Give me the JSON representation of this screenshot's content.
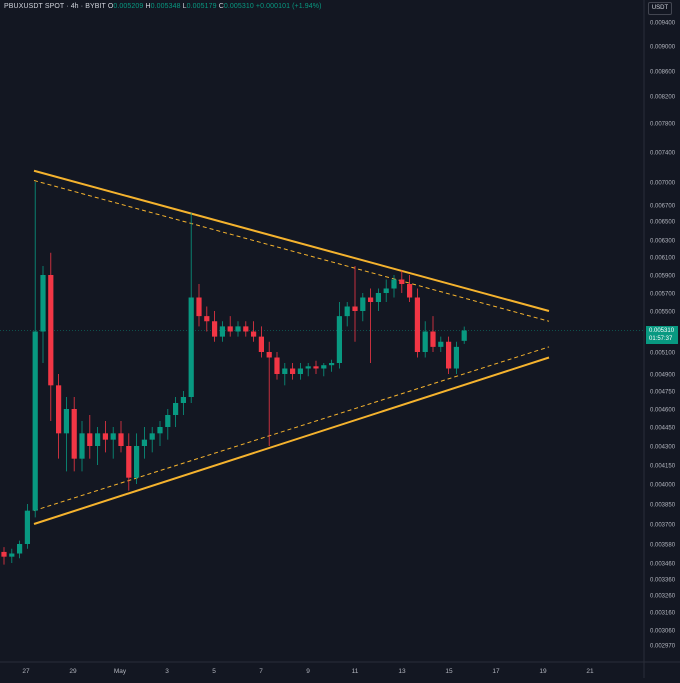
{
  "legend": {
    "symbol": "PBUXUSDT SPOT · 4h · BYBIT",
    "o_label": "O",
    "o_value": "0.005209",
    "h_label": "H",
    "h_value": "0.005348",
    "l_label": "L",
    "l_value": "0.005179",
    "c_label": "C",
    "c_value": "0.005310",
    "change": "+0.000101 (+1.94%)"
  },
  "currency": "USDT",
  "last_price": {
    "value": "0.005310",
    "countdown": "01:57:37"
  },
  "colors": {
    "background": "#131722",
    "up": "#089981",
    "down": "#f23645",
    "trendline": "#f5b32e",
    "axis_text": "#b2b5be"
  },
  "chart_data": {
    "type": "candlestick",
    "x_labels": [
      "27",
      "29",
      "May",
      "3",
      "5",
      "7",
      "9",
      "11",
      "13",
      "15",
      "17",
      "19",
      "21"
    ],
    "y_ticks": [
      "0.009400",
      "0.009000",
      "0.008600",
      "0.008200",
      "0.007800",
      "0.007400",
      "0.007000",
      "0.006700",
      "0.006500",
      "0.006300",
      "0.006100",
      "0.005900",
      "0.005700",
      "0.005500",
      "0.005100",
      "0.004900",
      "0.004750",
      "0.004600",
      "0.004450",
      "0.004300",
      "0.004150",
      "0.004000",
      "0.003850",
      "0.003700",
      "0.003580",
      "0.003460",
      "0.003360",
      "0.003260",
      "0.003160",
      "0.003060",
      "0.002970",
      "0.002885"
    ],
    "candles": [
      {
        "o": 0.00353,
        "h": 0.00356,
        "l": 0.00345,
        "c": 0.0035
      },
      {
        "o": 0.0035,
        "h": 0.00355,
        "l": 0.00346,
        "c": 0.00352
      },
      {
        "o": 0.00352,
        "h": 0.0036,
        "l": 0.00349,
        "c": 0.00358
      },
      {
        "o": 0.00358,
        "h": 0.00385,
        "l": 0.00355,
        "c": 0.0038
      },
      {
        "o": 0.0038,
        "h": 0.007,
        "l": 0.00375,
        "c": 0.0053
      },
      {
        "o": 0.0053,
        "h": 0.006,
        "l": 0.005,
        "c": 0.0059
      },
      {
        "o": 0.0059,
        "h": 0.00615,
        "l": 0.0045,
        "c": 0.0048
      },
      {
        "o": 0.0048,
        "h": 0.0049,
        "l": 0.0042,
        "c": 0.0044
      },
      {
        "o": 0.0044,
        "h": 0.0047,
        "l": 0.0041,
        "c": 0.0046
      },
      {
        "o": 0.0046,
        "h": 0.0047,
        "l": 0.0041,
        "c": 0.0042
      },
      {
        "o": 0.0042,
        "h": 0.0045,
        "l": 0.0041,
        "c": 0.0044
      },
      {
        "o": 0.0044,
        "h": 0.00455,
        "l": 0.0042,
        "c": 0.0043
      },
      {
        "o": 0.0043,
        "h": 0.00445,
        "l": 0.00415,
        "c": 0.0044
      },
      {
        "o": 0.0044,
        "h": 0.0045,
        "l": 0.00425,
        "c": 0.00435
      },
      {
        "o": 0.00435,
        "h": 0.00445,
        "l": 0.0042,
        "c": 0.0044
      },
      {
        "o": 0.0044,
        "h": 0.0045,
        "l": 0.00425,
        "c": 0.0043
      },
      {
        "o": 0.0043,
        "h": 0.0044,
        "l": 0.00395,
        "c": 0.00405
      },
      {
        "o": 0.00405,
        "h": 0.0044,
        "l": 0.004,
        "c": 0.0043
      },
      {
        "o": 0.0043,
        "h": 0.00445,
        "l": 0.0042,
        "c": 0.00435
      },
      {
        "o": 0.00435,
        "h": 0.00445,
        "l": 0.00425,
        "c": 0.0044
      },
      {
        "o": 0.0044,
        "h": 0.0045,
        "l": 0.0043,
        "c": 0.00445
      },
      {
        "o": 0.00445,
        "h": 0.0046,
        "l": 0.00435,
        "c": 0.00455
      },
      {
        "o": 0.00455,
        "h": 0.0047,
        "l": 0.00445,
        "c": 0.00465
      },
      {
        "o": 0.00465,
        "h": 0.00475,
        "l": 0.00455,
        "c": 0.0047
      },
      {
        "o": 0.0047,
        "h": 0.0066,
        "l": 0.00465,
        "c": 0.00565
      },
      {
        "o": 0.00565,
        "h": 0.0058,
        "l": 0.00535,
        "c": 0.00545
      },
      {
        "o": 0.00545,
        "h": 0.00555,
        "l": 0.0053,
        "c": 0.0054
      },
      {
        "o": 0.0054,
        "h": 0.0055,
        "l": 0.0052,
        "c": 0.00525
      },
      {
        "o": 0.00525,
        "h": 0.0054,
        "l": 0.0052,
        "c": 0.00535
      },
      {
        "o": 0.00535,
        "h": 0.00545,
        "l": 0.00525,
        "c": 0.0053
      },
      {
        "o": 0.0053,
        "h": 0.0054,
        "l": 0.00525,
        "c": 0.00535
      },
      {
        "o": 0.00535,
        "h": 0.0054,
        "l": 0.00525,
        "c": 0.0053
      },
      {
        "o": 0.0053,
        "h": 0.0054,
        "l": 0.0052,
        "c": 0.00525
      },
      {
        "o": 0.00525,
        "h": 0.00535,
        "l": 0.00505,
        "c": 0.0051
      },
      {
        "o": 0.0051,
        "h": 0.0052,
        "l": 0.0043,
        "c": 0.00505
      },
      {
        "o": 0.00505,
        "h": 0.0051,
        "l": 0.00485,
        "c": 0.0049
      },
      {
        "o": 0.0049,
        "h": 0.005,
        "l": 0.0048,
        "c": 0.00495
      },
      {
        "o": 0.00495,
        "h": 0.005,
        "l": 0.00485,
        "c": 0.0049
      },
      {
        "o": 0.0049,
        "h": 0.005,
        "l": 0.00485,
        "c": 0.00495
      },
      {
        "o": 0.00495,
        "h": 0.005,
        "l": 0.00488,
        "c": 0.00497
      },
      {
        "o": 0.00497,
        "h": 0.00502,
        "l": 0.0049,
        "c": 0.00495
      },
      {
        "o": 0.00495,
        "h": 0.005,
        "l": 0.00488,
        "c": 0.00498
      },
      {
        "o": 0.00498,
        "h": 0.00503,
        "l": 0.00492,
        "c": 0.005
      },
      {
        "o": 0.005,
        "h": 0.0056,
        "l": 0.00495,
        "c": 0.00545
      },
      {
        "o": 0.00545,
        "h": 0.0056,
        "l": 0.00535,
        "c": 0.00555
      },
      {
        "o": 0.00555,
        "h": 0.006,
        "l": 0.0052,
        "c": 0.0055
      },
      {
        "o": 0.0055,
        "h": 0.0057,
        "l": 0.0054,
        "c": 0.00565
      },
      {
        "o": 0.00565,
        "h": 0.00575,
        "l": 0.005,
        "c": 0.0056
      },
      {
        "o": 0.0056,
        "h": 0.00575,
        "l": 0.0055,
        "c": 0.0057
      },
      {
        "o": 0.0057,
        "h": 0.00585,
        "l": 0.0056,
        "c": 0.00575
      },
      {
        "o": 0.00575,
        "h": 0.0059,
        "l": 0.00565,
        "c": 0.00585
      },
      {
        "o": 0.00585,
        "h": 0.00595,
        "l": 0.0057,
        "c": 0.0058
      },
      {
        "o": 0.0058,
        "h": 0.0059,
        "l": 0.0056,
        "c": 0.00565
      },
      {
        "o": 0.00565,
        "h": 0.00575,
        "l": 0.00505,
        "c": 0.0051
      },
      {
        "o": 0.0051,
        "h": 0.0054,
        "l": 0.00505,
        "c": 0.0053
      },
      {
        "o": 0.0053,
        "h": 0.00545,
        "l": 0.0051,
        "c": 0.00515
      },
      {
        "o": 0.00515,
        "h": 0.00525,
        "l": 0.0051,
        "c": 0.0052
      },
      {
        "o": 0.0052,
        "h": 0.00525,
        "l": 0.0049,
        "c": 0.00495
      },
      {
        "o": 0.00495,
        "h": 0.0052,
        "l": 0.0049,
        "c": 0.00515
      },
      {
        "o": 0.005209,
        "h": 0.005348,
        "l": 0.005179,
        "c": 0.00531
      }
    ],
    "candle_x_from": 4,
    "candle_x_step": 7.8,
    "x_axis_label_positions_units": [
      27,
      29,
      31,
      33,
      35,
      37,
      39,
      41,
      43,
      45,
      47,
      49,
      51
    ],
    "trendlines": [
      {
        "style": "solid",
        "from": {
          "date": "Apr 27",
          "price": 0.00715
        },
        "to": {
          "date": "May 19",
          "price": 0.0055
        }
      },
      {
        "style": "solid",
        "from": {
          "date": "Apr 27",
          "price": 0.0037
        },
        "to": {
          "date": "May 19",
          "price": 0.00505
        }
      },
      {
        "style": "dashed",
        "from": {
          "date": "Apr 27",
          "price": 0.00702
        },
        "to": {
          "date": "May 19",
          "price": 0.0054
        }
      },
      {
        "style": "dashed",
        "from": {
          "date": "Apr 27",
          "price": 0.0038
        },
        "to": {
          "date": "May 19",
          "price": 0.00515
        }
      }
    ]
  }
}
